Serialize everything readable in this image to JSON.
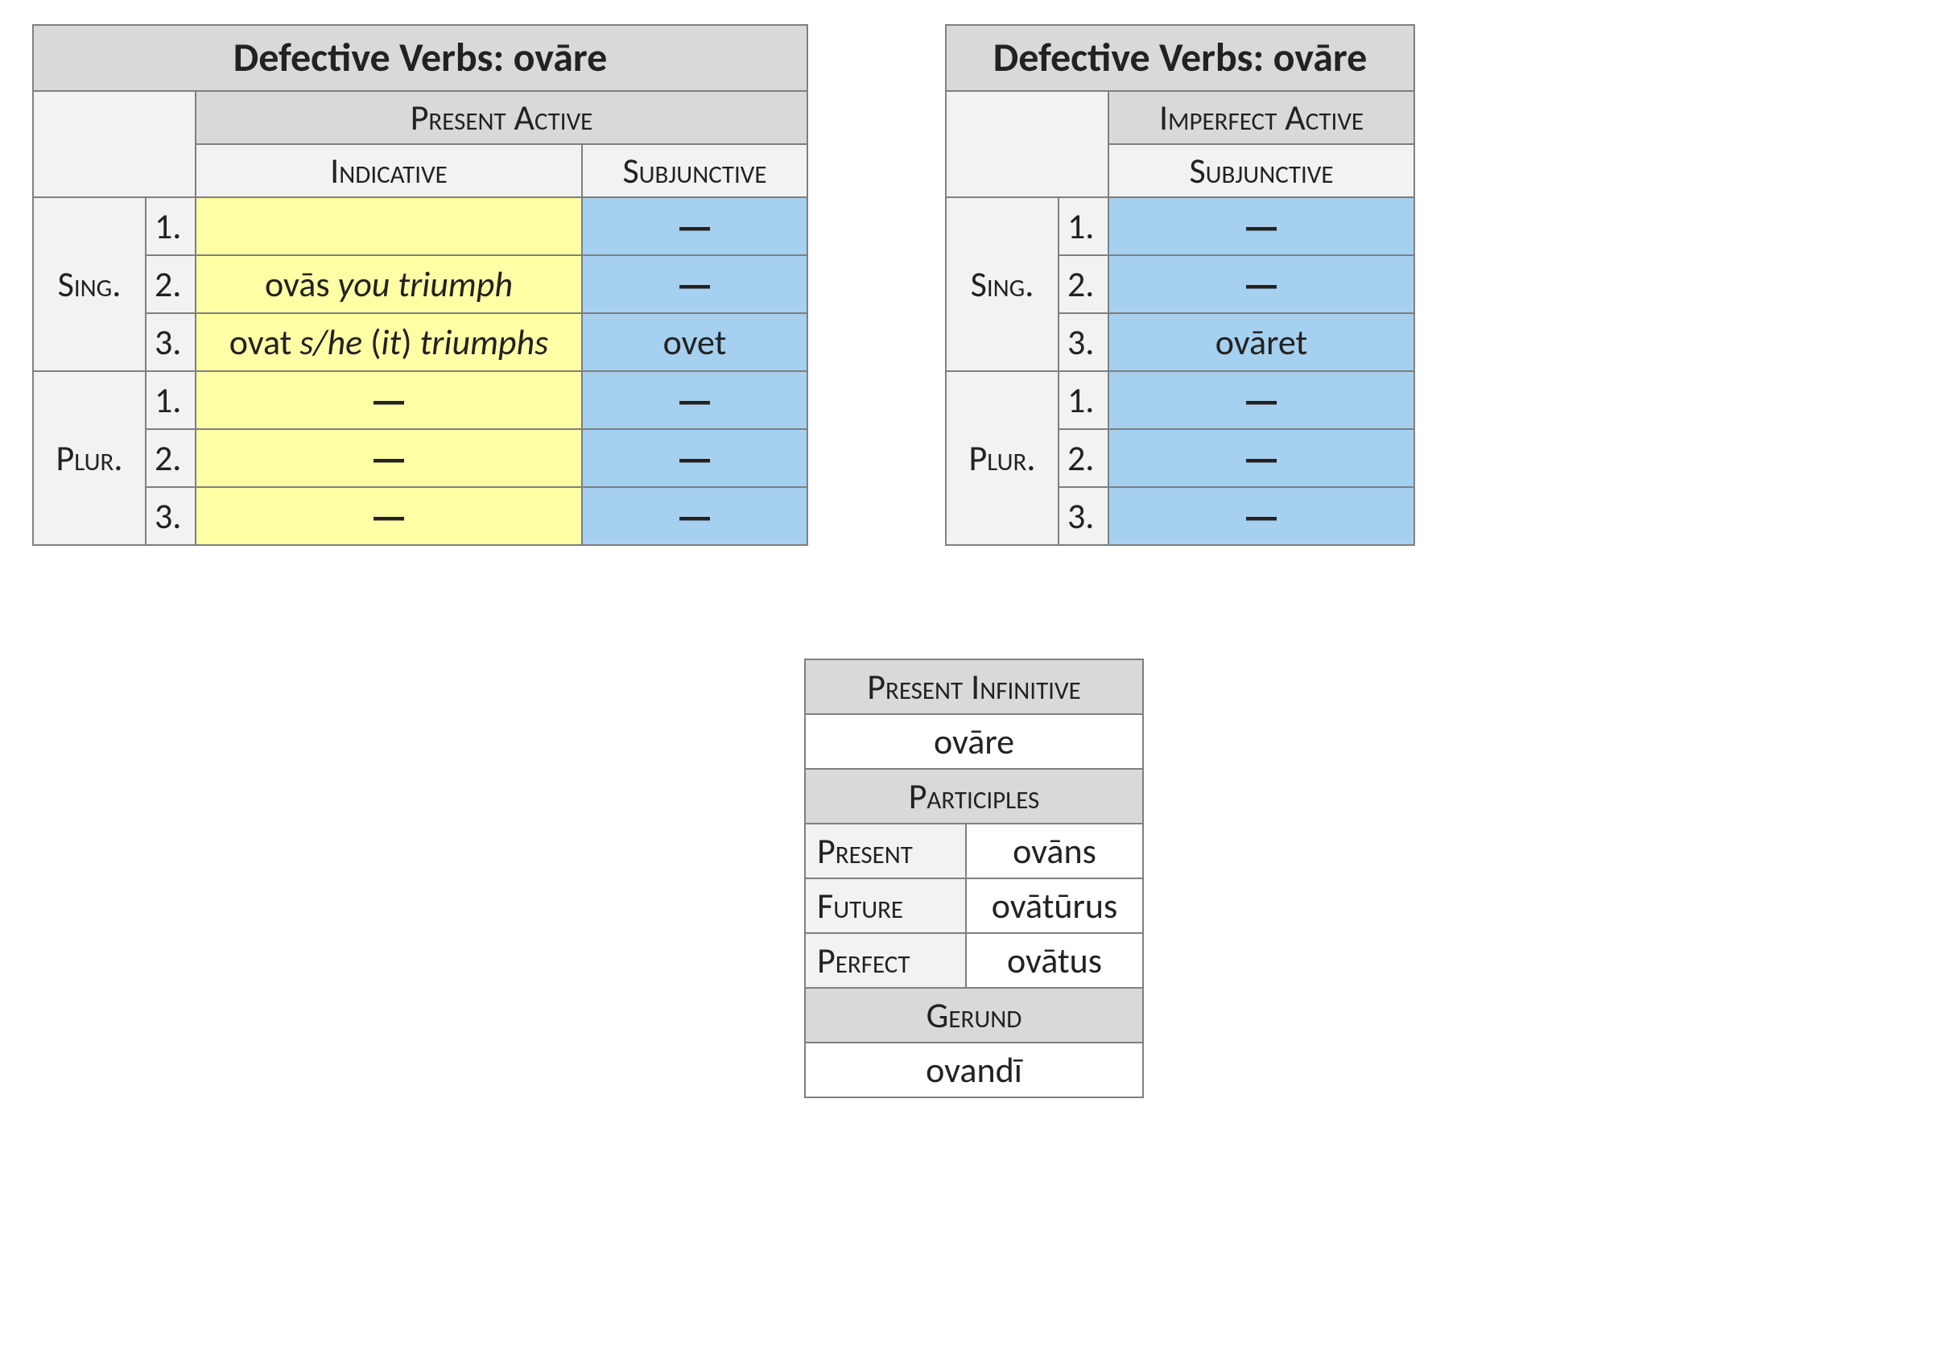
{
  "colors": {
    "header_bg": "#d9d9d9",
    "subheader_bg": "#f2f2f2",
    "indicative_bg": "#ffffa6",
    "subjunctive_bg": "#a6d0ef",
    "border": "#7f7f7f",
    "page_bg": "#ffffff"
  },
  "table1": {
    "title": "Defective Verbs:  ovāre",
    "group_header": "Present Active",
    "col_indicative": "Indicative",
    "col_subjunctive": "Subjunctive",
    "num_sing": "Sing.",
    "num_plur": "Plur.",
    "persons": [
      "1.",
      "2.",
      "3."
    ],
    "sing1_ind": "",
    "sing1_sub": "—",
    "sing2_ind_word": "ovās",
    "sing2_ind_gloss": "you triumph",
    "sing2_sub": "—",
    "sing3_ind_word": "ovat ",
    "sing3_ind_gloss1": "s/he",
    "sing3_ind_paren_open": " (",
    "sing3_ind_gloss2": "it",
    "sing3_ind_paren_close": ") ",
    "sing3_ind_gloss3": "triumphs",
    "sing3_sub": "ovet",
    "plur1_ind": "—",
    "plur1_sub": "—",
    "plur2_ind": "—",
    "plur2_sub": "—",
    "plur3_ind": "—",
    "plur3_sub": "—"
  },
  "table2": {
    "title": "Defective Verbs:  ovāre",
    "group_header": "Imperfect Active",
    "col_subjunctive": "Subjunctive",
    "num_sing": "Sing.",
    "num_plur": "Plur.",
    "persons": [
      "1.",
      "2.",
      "3."
    ],
    "sing1_sub": "—",
    "sing2_sub": "—",
    "sing3_sub": "ovāret",
    "plur1_sub": "—",
    "plur2_sub": "—",
    "plur3_sub": "—"
  },
  "table3": {
    "present_inf_label": "Present Infinitive",
    "present_inf_value": "ovāre",
    "participles_label": "Participles",
    "present_label": "Present",
    "present_value": "ovāns",
    "future_label": "Future",
    "future_value": "ovātūrus",
    "perfect_label": "Perfect",
    "perfect_value": "ovātus",
    "gerund_label": "Gerund",
    "gerund_value": "ovandī"
  }
}
